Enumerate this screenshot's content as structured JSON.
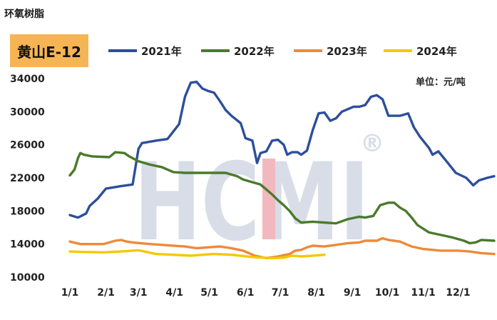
{
  "page_title": "环氧树脂",
  "chart_data": {
    "type": "line",
    "badge": "黄山E-12",
    "unit": "单位：元/吨",
    "watermark": "HCMI",
    "watermark_mark": "®",
    "x_ticks": [
      "1/1",
      "2/1",
      "3/1",
      "4/1",
      "5/1",
      "6/1",
      "7/1",
      "8/1",
      "9/1",
      "10/1",
      "11/1",
      "12/1"
    ],
    "y_ticks": [
      10000,
      14000,
      18000,
      22000,
      26000,
      30000,
      34000
    ],
    "ylim": [
      10000,
      34000
    ],
    "x_unit": "day of year",
    "xlim": [
      1,
      366
    ],
    "colors": {
      "2021年": "#2d4f9a",
      "2022年": "#4a7a2c",
      "2023年": "#ed8a3a",
      "2024年": "#f5c800"
    },
    "series": [
      {
        "name": "2021年",
        "points": [
          [
            1,
            17500
          ],
          [
            8,
            17200
          ],
          [
            15,
            17700
          ],
          [
            18,
            18600
          ],
          [
            25,
            19500
          ],
          [
            32,
            20700
          ],
          [
            45,
            21000
          ],
          [
            55,
            21200
          ],
          [
            60,
            25500
          ],
          [
            63,
            26200
          ],
          [
            75,
            26500
          ],
          [
            85,
            26700
          ],
          [
            95,
            28500
          ],
          [
            100,
            31800
          ],
          [
            105,
            33500
          ],
          [
            110,
            33600
          ],
          [
            115,
            32800
          ],
          [
            120,
            32500
          ],
          [
            125,
            32300
          ],
          [
            130,
            31300
          ],
          [
            135,
            30200
          ],
          [
            140,
            29500
          ],
          [
            148,
            28600
          ],
          [
            152,
            26800
          ],
          [
            158,
            26500
          ],
          [
            162,
            23800
          ],
          [
            165,
            25000
          ],
          [
            170,
            25200
          ],
          [
            175,
            26500
          ],
          [
            180,
            26600
          ],
          [
            185,
            26000
          ],
          [
            188,
            24800
          ],
          [
            192,
            25100
          ],
          [
            197,
            25100
          ],
          [
            200,
            24800
          ],
          [
            205,
            25300
          ],
          [
            210,
            27800
          ],
          [
            215,
            29800
          ],
          [
            220,
            29900
          ],
          [
            225,
            28900
          ],
          [
            230,
            29200
          ],
          [
            235,
            30000
          ],
          [
            240,
            30300
          ],
          [
            245,
            30600
          ],
          [
            250,
            30600
          ],
          [
            255,
            30800
          ],
          [
            260,
            31800
          ],
          [
            265,
            32000
          ],
          [
            270,
            31500
          ],
          [
            275,
            29500
          ],
          [
            285,
            29500
          ],
          [
            292,
            29800
          ],
          [
            297,
            28100
          ],
          [
            302,
            27000
          ],
          [
            310,
            25600
          ],
          [
            313,
            24800
          ],
          [
            318,
            25200
          ],
          [
            325,
            24000
          ],
          [
            333,
            22600
          ],
          [
            342,
            22000
          ],
          [
            348,
            21100
          ],
          [
            353,
            21700
          ],
          [
            360,
            22000
          ],
          [
            366,
            22200
          ]
        ]
      },
      {
        "name": "2022年",
        "points": [
          [
            1,
            22300
          ],
          [
            5,
            23000
          ],
          [
            8,
            24400
          ],
          [
            10,
            25000
          ],
          [
            13,
            24800
          ],
          [
            20,
            24600
          ],
          [
            35,
            24500
          ],
          [
            40,
            25100
          ],
          [
            48,
            25000
          ],
          [
            52,
            24600
          ],
          [
            60,
            24000
          ],
          [
            70,
            23600
          ],
          [
            80,
            23300
          ],
          [
            90,
            22700
          ],
          [
            100,
            22600
          ],
          [
            110,
            22600
          ],
          [
            120,
            22600
          ],
          [
            135,
            22600
          ],
          [
            145,
            22200
          ],
          [
            150,
            21800
          ],
          [
            160,
            21400
          ],
          [
            165,
            21200
          ],
          [
            175,
            20000
          ],
          [
            180,
            19300
          ],
          [
            185,
            18700
          ],
          [
            190,
            18000
          ],
          [
            195,
            17100
          ],
          [
            200,
            16600
          ],
          [
            210,
            16700
          ],
          [
            220,
            16600
          ],
          [
            230,
            16500
          ],
          [
            240,
            17000
          ],
          [
            250,
            17300
          ],
          [
            255,
            17200
          ],
          [
            262,
            17400
          ],
          [
            268,
            18700
          ],
          [
            275,
            19000
          ],
          [
            280,
            19000
          ],
          [
            285,
            18400
          ],
          [
            290,
            18000
          ],
          [
            295,
            17200
          ],
          [
            300,
            16300
          ],
          [
            310,
            15400
          ],
          [
            320,
            15100
          ],
          [
            330,
            14800
          ],
          [
            340,
            14400
          ],
          [
            345,
            14100
          ],
          [
            350,
            14200
          ],
          [
            355,
            14500
          ],
          [
            366,
            14400
          ]
        ]
      },
      {
        "name": "2023年",
        "points": [
          [
            1,
            14300
          ],
          [
            10,
            14000
          ],
          [
            30,
            14000
          ],
          [
            35,
            14200
          ],
          [
            40,
            14400
          ],
          [
            45,
            14500
          ],
          [
            50,
            14300
          ],
          [
            55,
            14200
          ],
          [
            70,
            14000
          ],
          [
            80,
            13900
          ],
          [
            100,
            13700
          ],
          [
            110,
            13500
          ],
          [
            130,
            13700
          ],
          [
            140,
            13500
          ],
          [
            150,
            13200
          ],
          [
            160,
            12600
          ],
          [
            170,
            12300
          ],
          [
            180,
            12500
          ],
          [
            190,
            12800
          ],
          [
            195,
            13200
          ],
          [
            200,
            13300
          ],
          [
            205,
            13600
          ],
          [
            210,
            13800
          ],
          [
            220,
            13700
          ],
          [
            230,
            13900
          ],
          [
            240,
            14100
          ],
          [
            250,
            14200
          ],
          [
            255,
            14400
          ],
          [
            265,
            14400
          ],
          [
            270,
            14700
          ],
          [
            275,
            14500
          ],
          [
            285,
            14300
          ],
          [
            290,
            14000
          ],
          [
            295,
            13700
          ],
          [
            305,
            13400
          ],
          [
            320,
            13200
          ],
          [
            335,
            13200
          ],
          [
            345,
            13100
          ],
          [
            355,
            12900
          ],
          [
            366,
            12800
          ]
        ]
      },
      {
        "name": "2024年",
        "points": [
          [
            1,
            13100
          ],
          [
            10,
            13050
          ],
          [
            30,
            13000
          ],
          [
            45,
            13100
          ],
          [
            55,
            13200
          ],
          [
            60,
            13250
          ],
          [
            65,
            13100
          ],
          [
            75,
            12800
          ],
          [
            90,
            12700
          ],
          [
            105,
            12600
          ],
          [
            115,
            12700
          ],
          [
            125,
            12800
          ],
          [
            140,
            12700
          ],
          [
            160,
            12400
          ],
          [
            175,
            12300
          ],
          [
            185,
            12350
          ],
          [
            192,
            12600
          ],
          [
            200,
            12500
          ],
          [
            210,
            12600
          ],
          [
            220,
            12700
          ]
        ]
      }
    ]
  }
}
